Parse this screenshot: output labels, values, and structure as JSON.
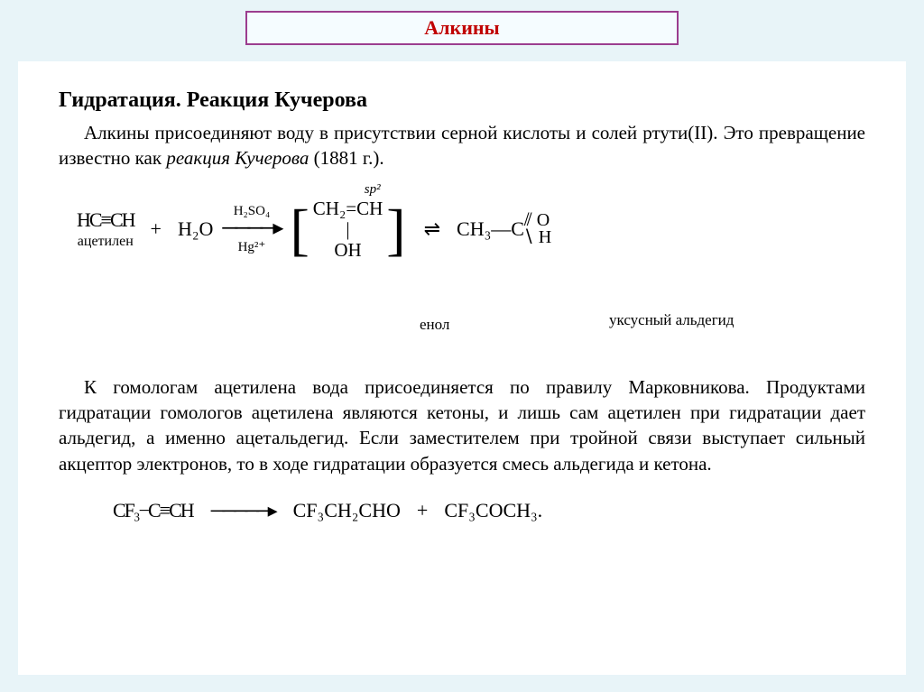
{
  "page_title": "Алкины",
  "heading": "Гидратация. Реакция Кучерова",
  "para1_a": "Алкины присоединяют воду в присутствии серной кислоты и солей ртути(II). Это превращение известно как ",
  "para1_i": "реакция Кучерова",
  "para1_b": " (1881 г.).",
  "reaction1": {
    "reactant1": "HC≡CH",
    "reactant1_label": "ацетилен",
    "plus": "+",
    "reactant2": "H₂O",
    "arrow_top1": "H₂SO₄",
    "arrow_top2": "Hg²⁺",
    "arrow": "────▸",
    "sp2": "sp²",
    "enol_top": "CH₂=CH",
    "enol_bar": "|",
    "enol_oh": "OH",
    "enol_label": "енол",
    "dbl_arrow": "⇌",
    "prod_ch3": "CH₃—C",
    "prod_o_top": "⫽ O",
    "prod_h": "∖ H",
    "prod_label": "уксусный альдегид"
  },
  "para2": "К гомологам ацетилена вода присоединяется по правилу Марковникова. Продуктами гидратации гомологов ацетилена являются кетоны, и лишь сам ацетилен при гидратации дает альдегид, а именно ацетальдегид. Если заместителем при тройной связи выступает сильный акцептор электронов, то в ходе гидратации образуется смесь альдегида и кетона.",
  "reaction2": {
    "reactant": "CF₃−C≡CH",
    "arrow": "─────▸",
    "prod1": "CF₃CH₂CHO",
    "plus": "+",
    "prod2": "CF₃COCH₃."
  },
  "colors": {
    "page_bg": "#e8f4f8",
    "title_bg": "#f5fcff",
    "title_border": "#9b3d8f",
    "title_text": "#c00000",
    "content_bg": "#ffffff",
    "text": "#000000"
  }
}
